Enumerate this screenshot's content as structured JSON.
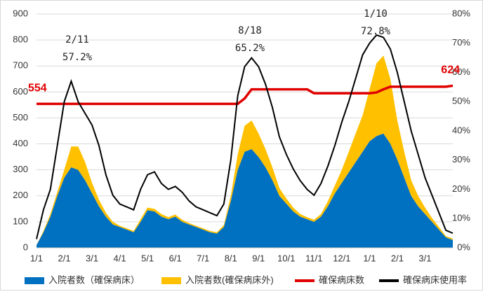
{
  "chart_data": {
    "type": "stacked_area_line",
    "categories": [
      "1/1",
      null,
      null,
      null,
      "2/1",
      null,
      null,
      null,
      "3/1",
      null,
      null,
      null,
      "4/1",
      null,
      null,
      null,
      "5/1",
      null,
      null,
      null,
      "6/1",
      null,
      null,
      null,
      "7/1",
      null,
      null,
      null,
      "8/1",
      null,
      null,
      null,
      "9/1",
      null,
      null,
      null,
      "10/1",
      null,
      null,
      null,
      "11/1",
      null,
      null,
      null,
      "12/1",
      null,
      null,
      null,
      "1/1",
      null,
      null,
      null,
      "2/1",
      null,
      null,
      null,
      "3/1",
      null,
      null,
      null,
      null
    ],
    "series": [
      {
        "name": "入院者数（確保病床）",
        "color": "#0070c0",
        "kind": "area",
        "values": [
          10,
          60,
          120,
          200,
          270,
          310,
          300,
          260,
          210,
          160,
          120,
          90,
          80,
          70,
          60,
          100,
          145,
          140,
          120,
          110,
          120,
          100,
          90,
          80,
          70,
          60,
          55,
          80,
          180,
          300,
          370,
          380,
          350,
          310,
          260,
          200,
          170,
          140,
          120,
          110,
          100,
          120,
          160,
          210,
          250,
          290,
          330,
          370,
          410,
          430,
          440,
          400,
          340,
          270,
          200,
          160,
          130,
          100,
          70,
          40,
          30
        ]
      },
      {
        "name": "入院者数(確保病床外)",
        "color": "#ffc000",
        "kind": "area",
        "values": [
          0,
          5,
          10,
          15,
          30,
          80,
          90,
          70,
          40,
          25,
          15,
          10,
          5,
          5,
          5,
          10,
          10,
          10,
          10,
          8,
          8,
          8,
          5,
          5,
          5,
          5,
          5,
          8,
          20,
          60,
          100,
          110,
          90,
          70,
          50,
          30,
          20,
          15,
          10,
          8,
          8,
          10,
          20,
          30,
          50,
          80,
          110,
          140,
          200,
          280,
          300,
          250,
          150,
          100,
          60,
          40,
          25,
          15,
          10,
          5,
          5
        ]
      },
      {
        "name": "確保病床数",
        "color": "#e00000",
        "kind": "line",
        "values": [
          554,
          554,
          554,
          554,
          554,
          554,
          554,
          554,
          554,
          554,
          554,
          554,
          554,
          554,
          554,
          554,
          554,
          554,
          554,
          554,
          554,
          554,
          554,
          554,
          554,
          554,
          554,
          554,
          554,
          554,
          575,
          610,
          610,
          610,
          610,
          610,
          610,
          610,
          610,
          610,
          595,
          595,
          595,
          595,
          595,
          595,
          595,
          595,
          595,
          598,
          610,
          620,
          620,
          620,
          620,
          620,
          620,
          620,
          620,
          620,
          624
        ],
        "value_labels": [
          "554",
          null,
          null,
          null,
          null,
          null,
          null,
          null,
          null,
          null,
          null,
          null,
          null,
          null,
          null,
          null,
          null,
          null,
          null,
          null,
          null,
          null,
          null,
          null,
          null,
          null,
          null,
          null,
          null,
          null,
          null,
          null,
          null,
          null,
          null,
          null,
          null,
          null,
          null,
          null,
          null,
          null,
          null,
          null,
          null,
          null,
          null,
          null,
          null,
          null,
          null,
          null,
          null,
          null,
          null,
          null,
          null,
          null,
          null,
          null,
          "624"
        ]
      },
      {
        "name": "確保病床使用率",
        "color": "#000000",
        "kind": "line",
        "axis": "y2",
        "values": [
          3,
          13,
          20,
          35,
          50,
          57,
          50,
          46,
          42,
          35,
          25,
          18,
          15,
          14,
          13,
          20,
          25,
          26,
          22,
          20,
          21,
          19,
          16,
          14,
          13,
          12,
          11,
          15,
          30,
          52,
          62,
          65,
          62,
          56,
          48,
          38,
          32,
          27,
          23,
          20,
          18,
          22,
          28,
          35,
          43,
          50,
          58,
          66,
          70,
          72.8,
          72,
          68,
          60,
          50,
          40,
          32,
          24,
          18,
          12,
          6,
          5
        ]
      }
    ],
    "annotations": [
      {
        "date": "2/11",
        "text": "57.2%"
      },
      {
        "date": "8/18",
        "text": "65.2%"
      },
      {
        "date": "1/10",
        "text": "72.8%"
      }
    ],
    "ylim": [
      0,
      900
    ],
    "yticks": [
      0,
      100,
      200,
      300,
      400,
      500,
      600,
      700,
      800,
      900
    ],
    "y2lim": [
      0,
      80
    ],
    "y2ticks": [
      {
        "value": 0,
        "label": "0%"
      },
      {
        "value": 10,
        "label": "10%"
      },
      {
        "value": 20,
        "label": "20%"
      },
      {
        "value": 30,
        "label": "30%"
      },
      {
        "value": 40,
        "label": "40%"
      },
      {
        "value": 50,
        "label": "50%"
      },
      {
        "value": 60,
        "label": "60%"
      },
      {
        "value": 70,
        "label": "70%"
      },
      {
        "value": 80,
        "label": "80%"
      }
    ],
    "grid": true,
    "legend": "bottom"
  }
}
